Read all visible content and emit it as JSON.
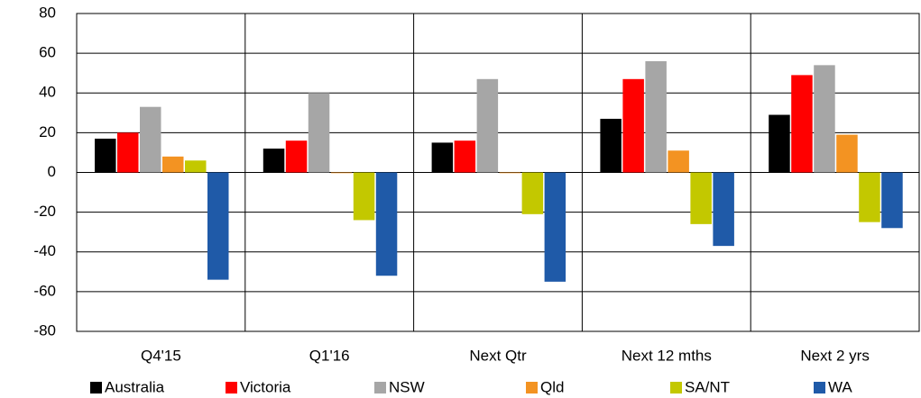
{
  "chart_data": {
    "type": "bar",
    "categories": [
      "Q4'15",
      "Q1'16",
      "Next Qtr",
      "Next 12 mths",
      "Next 2 yrs"
    ],
    "series": [
      {
        "name": "Australia",
        "color": "#000000",
        "values": [
          17,
          12,
          15,
          27,
          29
        ]
      },
      {
        "name": "Victoria",
        "color": "#ff0000",
        "values": [
          20,
          16,
          16,
          47,
          49
        ]
      },
      {
        "name": "NSW",
        "color": "#a6a6a6",
        "values": [
          33,
          40,
          47,
          56,
          54
        ]
      },
      {
        "name": "Qld",
        "color": "#f39322",
        "values": [
          8,
          0,
          0,
          11,
          19
        ]
      },
      {
        "name": "SA/NT",
        "color": "#c3c800",
        "values": [
          6,
          -24,
          -21,
          -26,
          -25
        ]
      },
      {
        "name": "WA",
        "color": "#1f5aa8",
        "values": [
          -54,
          -52,
          -55,
          -37,
          -28
        ]
      }
    ],
    "ylim": [
      -80,
      80
    ],
    "yticks": [
      -80,
      -60,
      -40,
      -20,
      0,
      20,
      40,
      60,
      80
    ],
    "grid": true,
    "legend": "bottom"
  }
}
